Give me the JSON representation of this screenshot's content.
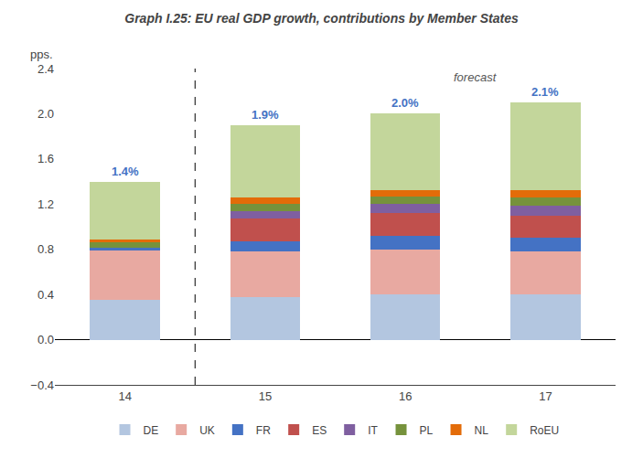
{
  "chart_data": {
    "type": "bar",
    "stacked": true,
    "title": "Graph I.25: EU real GDP growth, contributions by Member States",
    "ylabel": "pps.",
    "annotation": "forecast",
    "categories": [
      "14",
      "15",
      "16",
      "17"
    ],
    "series": [
      {
        "name": "DE",
        "color": "#b3c6e0",
        "values": [
          0.35,
          0.38,
          0.4,
          0.4
        ]
      },
      {
        "name": "UK",
        "color": "#e8a9a1",
        "values": [
          0.44,
          0.4,
          0.4,
          0.38
        ]
      },
      {
        "name": "FR",
        "color": "#4472c4",
        "values": [
          0.02,
          0.09,
          0.12,
          0.12
        ]
      },
      {
        "name": "ES",
        "color": "#c0504d",
        "values": [
          0.05,
          0.2,
          0.2,
          0.2
        ]
      },
      {
        "name": "IT",
        "color": "#7f5fa0",
        "values": [
          -0.05,
          0.07,
          0.08,
          0.09
        ]
      },
      {
        "name": "PL",
        "color": "#76923c",
        "values": [
          0.05,
          0.06,
          0.07,
          0.07
        ]
      },
      {
        "name": "NL",
        "color": "#e36c09",
        "values": [
          0.03,
          0.06,
          0.05,
          0.06
        ]
      },
      {
        "name": "RoEU",
        "color": "#c3d69b",
        "values": [
          0.51,
          0.64,
          0.68,
          0.78
        ]
      }
    ],
    "totals": [
      1.4,
      1.9,
      2.0,
      2.1
    ],
    "total_labels": [
      "1.4%",
      "1.9%",
      "2.0%",
      "2.1%"
    ],
    "ylim": [
      -0.4,
      2.4
    ],
    "yticks": [
      {
        "value": -0.4,
        "label": "−0.4"
      },
      {
        "value": 0,
        "label": "0.0"
      },
      0.4,
      0.8,
      1.2,
      1.6,
      {
        "value": 2,
        "label": "2.0"
      },
      2.4
    ],
    "grid": false,
    "legend": "bottom"
  }
}
